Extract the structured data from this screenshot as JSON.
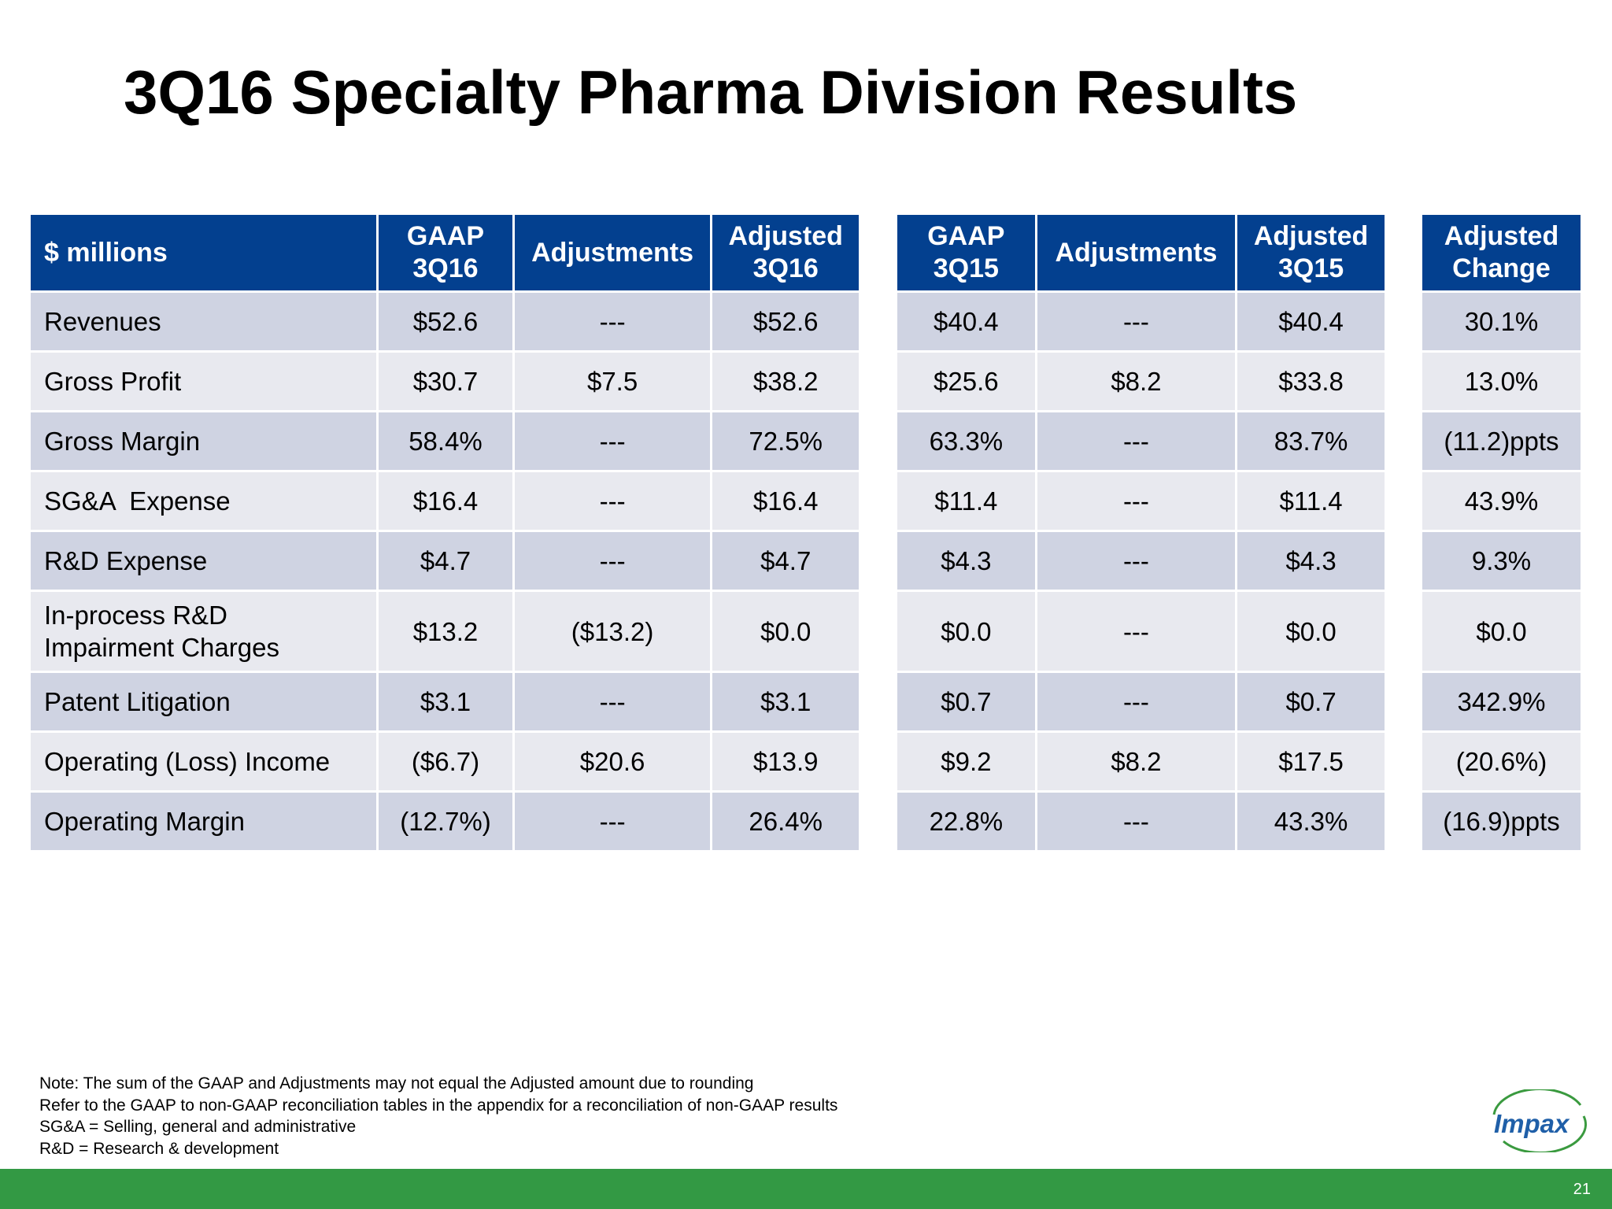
{
  "title": "3Q16 Specialty Pharma Division Results",
  "header": {
    "label": "$ millions",
    "gaap_3q16": "GAAP 3Q16",
    "adjustments_3q16": "Adjustments",
    "adjusted_3q16": "Adjusted 3Q16",
    "gaap_3q15": "GAAP 3Q15",
    "adjustments_3q15": "Adjustments",
    "adjusted_3q15": "Adjusted 3Q15",
    "adjusted_change": "Adjusted Change"
  },
  "rows": [
    {
      "label": "Revenues",
      "gaap_3q16": "$52.6",
      "adj_3q16": "---",
      "adjusted_3q16": "$52.6",
      "gaap_3q15": "$40.4",
      "adj_3q15": "---",
      "adjusted_3q15": "$40.4",
      "change": "30.1%"
    },
    {
      "label": "Gross Profit",
      "gaap_3q16": "$30.7",
      "adj_3q16": "$7.5",
      "adjusted_3q16": "$38.2",
      "gaap_3q15": "$25.6",
      "adj_3q15": "$8.2",
      "adjusted_3q15": "$33.8",
      "change": "13.0%"
    },
    {
      "label": "Gross Margin",
      "gaap_3q16": "58.4%",
      "adj_3q16": "---",
      "adjusted_3q16": "72.5%",
      "gaap_3q15": "63.3%",
      "adj_3q15": "---",
      "adjusted_3q15": "83.7%",
      "change": "(11.2)ppts"
    },
    {
      "label": "SG&A  Expense",
      "gaap_3q16": "$16.4",
      "adj_3q16": "---",
      "adjusted_3q16": "$16.4",
      "gaap_3q15": "$11.4",
      "adj_3q15": "---",
      "adjusted_3q15": "$11.4",
      "change": "43.9%"
    },
    {
      "label": "R&D Expense",
      "gaap_3q16": "$4.7",
      "adj_3q16": "---",
      "adjusted_3q16": "$4.7",
      "gaap_3q15": "$4.3",
      "adj_3q15": "---",
      "adjusted_3q15": "$4.3",
      "change": "9.3%"
    },
    {
      "label_line1": "In-process R&D",
      "label_line2": "Impairment Charges",
      "gaap_3q16": "$13.2",
      "adj_3q16": "($13.2)",
      "adjusted_3q16": "$0.0",
      "gaap_3q15": "$0.0",
      "adj_3q15": "---",
      "adjusted_3q15": "$0.0",
      "change": "$0.0"
    },
    {
      "label": "Patent Litigation",
      "gaap_3q16": "$3.1",
      "adj_3q16": "---",
      "adjusted_3q16": "$3.1",
      "gaap_3q15": "$0.7",
      "adj_3q15": "---",
      "adjusted_3q15": "$0.7",
      "change": "342.9%"
    },
    {
      "label": "Operating (Loss) Income",
      "gaap_3q16": "($6.7)",
      "adj_3q16": "$20.6",
      "adjusted_3q16": "$13.9",
      "gaap_3q15": "$9.2",
      "adj_3q15": "$8.2",
      "adjusted_3q15": "$17.5",
      "change": "(20.6%)"
    },
    {
      "label": "Operating Margin",
      "gaap_3q16": "(12.7%)",
      "adj_3q16": "---",
      "adjusted_3q16": "26.4%",
      "gaap_3q15": "22.8%",
      "adj_3q15": "---",
      "adjusted_3q15": "43.3%",
      "change": "(16.9)ppts"
    }
  ],
  "notes": [
    "Note: The sum of the GAAP and Adjustments may not equal the Adjusted amount due to rounding",
    "Refer to the GAAP to non-GAAP reconciliation tables in the appendix for a reconciliation of non-GAAP results",
    "SG&A = Selling, general and administrative",
    "R&D = Research & development"
  ],
  "logo_text": "Impax",
  "page_number": "21",
  "colors": {
    "header_bg": "#03408f",
    "row_dark": "#cfd3e2",
    "row_light": "#e8e9ef",
    "footer_bar": "#339944",
    "logo_blue": "#1f5fa8",
    "logo_green": "#3a9a3f"
  }
}
